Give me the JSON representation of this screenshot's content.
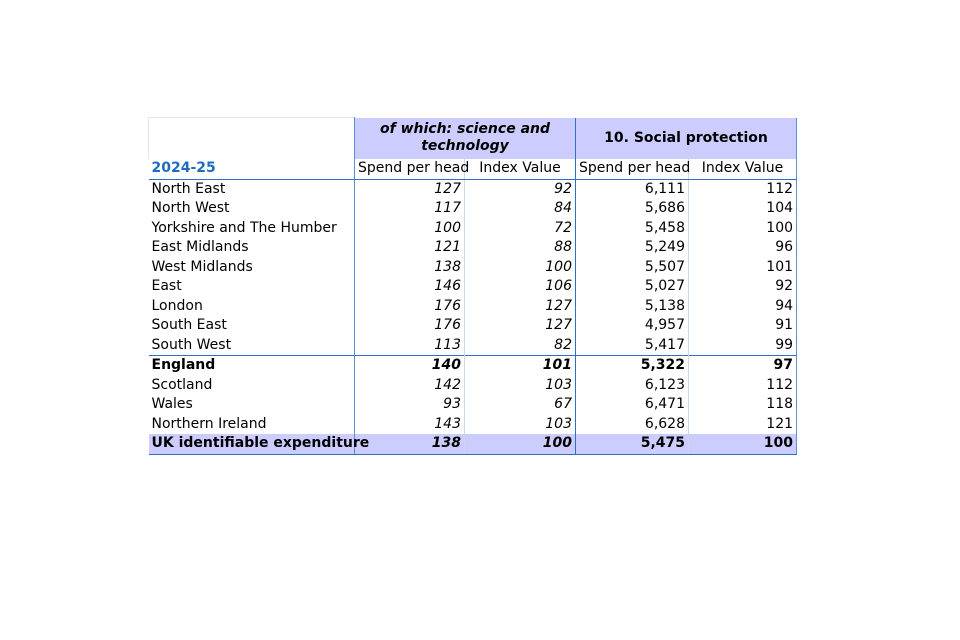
{
  "table": {
    "group_headers": {
      "science": "of which: science and technology",
      "social": "10. Social protection"
    },
    "year_label": "2024-25",
    "column_headers": [
      "Spend per head",
      "Index Value",
      "Spend per head",
      "Index Value"
    ],
    "rows": [
      {
        "region": "North East",
        "sci_sph": "127",
        "sci_idx": "92",
        "sp_sph": "6,111",
        "sp_idx": "112"
      },
      {
        "region": "North West",
        "sci_sph": "117",
        "sci_idx": "84",
        "sp_sph": "5,686",
        "sp_idx": "104"
      },
      {
        "region": "Yorkshire and The Humber",
        "sci_sph": "100",
        "sci_idx": "72",
        "sp_sph": "5,458",
        "sp_idx": "100"
      },
      {
        "region": "East Midlands",
        "sci_sph": "121",
        "sci_idx": "88",
        "sp_sph": "5,249",
        "sp_idx": "96"
      },
      {
        "region": "West Midlands",
        "sci_sph": "138",
        "sci_idx": "100",
        "sp_sph": "5,507",
        "sp_idx": "101"
      },
      {
        "region": "East",
        "sci_sph": "146",
        "sci_idx": "106",
        "sp_sph": "5,027",
        "sp_idx": "92"
      },
      {
        "region": "London",
        "sci_sph": "176",
        "sci_idx": "127",
        "sp_sph": "5,138",
        "sp_idx": "94"
      },
      {
        "region": "South East",
        "sci_sph": "176",
        "sci_idx": "127",
        "sp_sph": "4,957",
        "sp_idx": "91"
      },
      {
        "region": "South West",
        "sci_sph": "113",
        "sci_idx": "82",
        "sp_sph": "5,417",
        "sp_idx": "99"
      },
      {
        "region": "England",
        "sci_sph": "140",
        "sci_idx": "101",
        "sp_sph": "5,322",
        "sp_idx": "97"
      },
      {
        "region": "Scotland",
        "sci_sph": "142",
        "sci_idx": "103",
        "sp_sph": "6,123",
        "sp_idx": "112"
      },
      {
        "region": "Wales",
        "sci_sph": "93",
        "sci_idx": "67",
        "sp_sph": "6,471",
        "sp_idx": "118"
      },
      {
        "region": "Northern Ireland",
        "sci_sph": "143",
        "sci_idx": "103",
        "sp_sph": "6,628",
        "sp_idx": "121"
      },
      {
        "region": "UK identifiable expenditure",
        "sci_sph": "138",
        "sci_idx": "100",
        "sp_sph": "5,475",
        "sp_idx": "100"
      }
    ],
    "colors": {
      "group_header_fill": "#ccccff",
      "year_text": "#1f6bbf",
      "rule": "#2e6fc7"
    }
  }
}
